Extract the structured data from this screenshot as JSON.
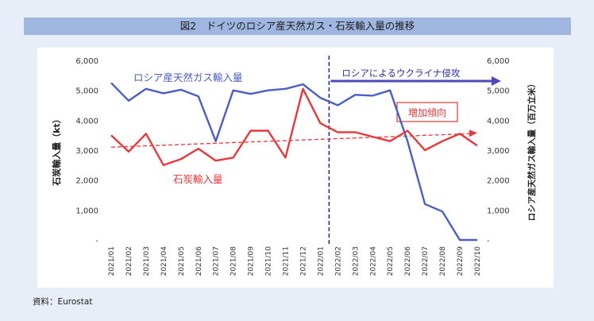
{
  "title": "図2　ドイツのロシア産天然ガス・石炭輸入量の推移",
  "source": "資料：Eurostat",
  "chart_data": {
    "type": "line",
    "categories": [
      "2021/01",
      "2021/02",
      "2021/03",
      "2021/04",
      "2021/05",
      "2021/06",
      "2021/07",
      "2021/08",
      "2021/09",
      "2021/10",
      "2021/11",
      "2021/12",
      "2022/01",
      "2022/02",
      "2022/03",
      "2022/04",
      "2022/05",
      "2022/06",
      "2022/07",
      "2022/08",
      "2022/09",
      "2022/10"
    ],
    "ylabel_left": "石炭輸入量（kt）",
    "ylabel_right": "ロシア産天然ガス輸入量（百万立米）",
    "ylim_left": [
      0,
      6000
    ],
    "ylim_right": [
      0,
      6000
    ],
    "y_ticks_left": [
      "-",
      "1,000",
      "2,000",
      "3,000",
      "4,000",
      "5,000",
      "6,000"
    ],
    "y_ticks_right": [
      "-",
      "1,000",
      "2,000",
      "3,000",
      "4,000",
      "5,000",
      "6,000"
    ],
    "series": [
      {
        "name": "ロシア産天然ガス輸入量",
        "axis": "right",
        "color": "#4a5fc1",
        "values": [
          5250,
          4650,
          5050,
          4900,
          5020,
          4800,
          3300,
          5000,
          4880,
          5000,
          5050,
          5200,
          4750,
          4500,
          4850,
          4820,
          5000,
          3300,
          1200,
          950,
          0,
          0
        ]
      },
      {
        "name": "石炭輸入量",
        "axis": "left",
        "color": "#e8373a",
        "values": [
          3500,
          2950,
          3550,
          2500,
          2700,
          3050,
          2650,
          2750,
          3650,
          3650,
          2750,
          5050,
          3900,
          3600,
          3600,
          3450,
          3300,
          3650,
          3000,
          3300,
          3550,
          3150
        ]
      }
    ],
    "trend": {
      "label": "増加傾向",
      "color": "#e8373a",
      "start": 3100,
      "end": 3550
    },
    "event": {
      "label": "ロシアによるウクライナ侵攻",
      "color": "#2b2b99",
      "category": "2022/02"
    }
  }
}
